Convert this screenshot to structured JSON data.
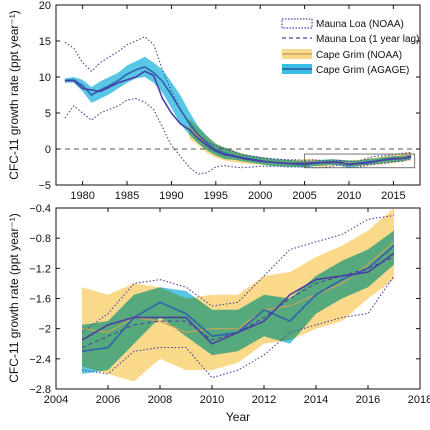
{
  "colors": {
    "mauna_loa": "#4a3fa3",
    "cape_grim_noaa_band": "#fbd98a",
    "cape_grim_agage_band": "#39bde0",
    "cape_grim_agage_line": "#2f63b0",
    "cape_grim_noaa_line": "#c8a35a",
    "overlap": "#4fb3a7",
    "zero_line": "#555555",
    "inset_box": "#666666"
  },
  "chart_data": [
    {
      "type": "line",
      "title": "",
      "xlabel": "",
      "ylabel": "CFC-11 growth rate (ppt year⁻¹)",
      "xlim": [
        1977,
        2018
      ],
      "ylim": [
        -5,
        20
      ],
      "xticks": [
        1980,
        1985,
        1990,
        1995,
        2000,
        2005,
        2010,
        2015
      ],
      "yticks": [
        -5,
        0,
        5,
        10,
        15,
        20
      ],
      "zero_line": true,
      "highlight_box": {
        "x": [
          2005,
          2017.4
        ],
        "y": [
          -2.6,
          -0.7
        ]
      },
      "legend_position": "top-right",
      "legend": [
        {
          "label": "Mauna Loa (NOAA)",
          "style": "dotted-box"
        },
        {
          "label": "Mauna Loa (1 year lag)",
          "style": "dashed-line"
        },
        {
          "label": "Cape Grim (NOAA)",
          "style": "yellow-band"
        },
        {
          "label": "Cape Grim (AGAGE)",
          "style": "blue-band"
        }
      ],
      "series": [
        {
          "name": "Mauna Loa (NOAA)",
          "role": "line",
          "x": [
            1978,
            1979,
            1980,
            1981,
            1982,
            1983,
            1984,
            1985,
            1986,
            1987,
            1988,
            1989,
            1990,
            1991,
            1992,
            1993,
            1994,
            1995,
            1996,
            1997,
            1998,
            1999,
            2000,
            2001,
            2002,
            2003,
            2004,
            2005,
            2006,
            2007,
            2008,
            2009,
            2010,
            2011,
            2012,
            2013,
            2014,
            2015,
            2016,
            2017
          ],
          "y": [
            9.5,
            9.5,
            8.4,
            8.2,
            8.0,
            8.6,
            9.2,
            9.6,
            10.0,
            10.8,
            10.2,
            7.0,
            5.0,
            3.5,
            2.7,
            1.5,
            0.5,
            -0.3,
            -0.8,
            -1.0,
            -1.3,
            -1.5,
            -1.7,
            -1.8,
            -1.9,
            -2.0,
            -2.0,
            -2.0,
            -1.9,
            -1.9,
            -1.9,
            -1.8,
            -2.2,
            -2.0,
            -2.0,
            -1.7,
            -1.5,
            -1.3,
            -1.3,
            -1.0
          ]
        },
        {
          "name": "Mauna Loa (NOAA)",
          "role": "upper-uncertainty",
          "x": [
            1978,
            1979,
            1980,
            1981,
            1982,
            1983,
            1984,
            1985,
            1986,
            1987,
            1988,
            1989,
            1990,
            1991,
            1992,
            1993,
            1994,
            1995,
            1996,
            1997,
            1998,
            1999,
            2000,
            2001,
            2002,
            2003,
            2004,
            2005,
            2006,
            2007,
            2008,
            2009,
            2010,
            2011,
            2012,
            2013,
            2014,
            2015,
            2016,
            2017
          ],
          "y": [
            14.8,
            14.0,
            12.0,
            10.8,
            12.0,
            12.8,
            13.5,
            14.5,
            15.0,
            15.6,
            14.5,
            11.0,
            8.0,
            5.5,
            3.5,
            2.0,
            1.0,
            0.4,
            0.0,
            -0.3,
            -0.8,
            -1.0,
            -1.2,
            -1.3,
            -1.4,
            -1.5,
            -1.5,
            -1.6,
            -1.5,
            -1.6,
            -1.7,
            -1.6,
            -1.7,
            -1.7,
            -1.3,
            -1.0,
            -0.9,
            -0.8,
            -0.6,
            -0.5
          ]
        },
        {
          "name": "Mauna Loa (NOAA)",
          "role": "lower-uncertainty",
          "x": [
            1978,
            1979,
            1980,
            1981,
            1982,
            1983,
            1984,
            1985,
            1986,
            1987,
            1988,
            1989,
            1990,
            1991,
            1992,
            1993,
            1994,
            1995,
            1996,
            1997,
            1998,
            1999,
            2000,
            2001,
            2002,
            2003,
            2004,
            2005,
            2006,
            2007,
            2008,
            2009,
            2010,
            2011,
            2012,
            2013,
            2014,
            2015,
            2016,
            2017
          ],
          "y": [
            4.3,
            6.0,
            5.0,
            4.0,
            5.0,
            5.5,
            6.0,
            6.8,
            7.0,
            6.5,
            5.5,
            3.0,
            0.5,
            -1.0,
            -2.5,
            -3.5,
            -3.3,
            -2.5,
            -2.3,
            -2.5,
            -2.6,
            -2.5,
            -2.4,
            -2.4,
            -2.4,
            -2.5,
            -2.5,
            -2.5,
            -2.6,
            -2.6,
            -2.4,
            -2.2,
            -2.6,
            -2.5,
            -2.3,
            -2.1,
            -2.0,
            -1.8,
            -1.7,
            -1.3
          ]
        },
        {
          "name": "Cape Grim (NOAA)",
          "role": "band",
          "x": [
            1992,
            1993,
            1994,
            1995,
            1996,
            1997,
            1998,
            1999,
            2000,
            2001,
            2002,
            2003,
            2004,
            2005,
            2006,
            2007,
            2008,
            2009,
            2010,
            2011,
            2012,
            2013,
            2014,
            2015,
            2016,
            2017
          ],
          "y": [
            2.8,
            1.8,
            0.6,
            -0.2,
            -0.7,
            -1.0,
            -1.3,
            -1.5,
            -1.6,
            -1.8,
            -1.9,
            -2.0,
            -2.0,
            -2.0,
            -1.8,
            -2.0,
            -1.8,
            -1.8,
            -2.0,
            -2.0,
            -1.8,
            -1.7,
            -1.5,
            -1.3,
            -1.2,
            -0.9
          ],
          "upper": [
            4.2,
            3.0,
            1.8,
            0.8,
            0.2,
            -0.2,
            -0.6,
            -0.9,
            -1.1,
            -1.3,
            -1.4,
            -1.5,
            -1.5,
            -1.4,
            -1.4,
            -1.6,
            -1.4,
            -1.5,
            -1.6,
            -1.5,
            -1.3,
            -1.2,
            -1.0,
            -0.8,
            -0.6,
            -0.4
          ],
          "lower": [
            1.4,
            0.6,
            -0.6,
            -1.2,
            -1.6,
            -1.8,
            -2.0,
            -2.1,
            -2.2,
            -2.3,
            -2.4,
            -2.4,
            -2.5,
            -2.5,
            -2.4,
            -2.5,
            -2.3,
            -2.3,
            -2.4,
            -2.4,
            -2.3,
            -2.2,
            -2.1,
            -1.9,
            -1.8,
            -1.6
          ]
        },
        {
          "name": "Cape Grim (AGAGE)",
          "role": "band",
          "x": [
            1978,
            1979,
            1980,
            1981,
            1982,
            1983,
            1984,
            1985,
            1986,
            1987,
            1988,
            1989,
            1990,
            1991,
            1992,
            1993,
            1994,
            1995,
            1996,
            1997,
            1998,
            1999,
            2000,
            2001,
            2002,
            2003,
            2004,
            2005,
            2006,
            2007,
            2008,
            2009,
            2010,
            2011,
            2012,
            2013,
            2014,
            2015,
            2016,
            2017
          ],
          "y": [
            9.5,
            9.6,
            8.8,
            7.5,
            8.2,
            8.8,
            9.5,
            10.4,
            11.0,
            11.4,
            10.6,
            9.4,
            7.5,
            5.5,
            3.6,
            2.0,
            0.8,
            -0.1,
            -0.6,
            -0.9,
            -1.2,
            -1.4,
            -1.6,
            -1.8,
            -1.9,
            -2.0,
            -2.1,
            -2.2,
            -2.0,
            -1.9,
            -1.8,
            -1.9,
            -2.1,
            -2.0,
            -1.8,
            -1.7,
            -1.5,
            -1.4,
            -1.3,
            -1.1
          ],
          "upper": [
            9.8,
            10.0,
            9.6,
            8.6,
            9.4,
            10.0,
            10.6,
            11.6,
            12.2,
            12.8,
            12.0,
            11.0,
            9.3,
            7.5,
            5.2,
            3.2,
            1.8,
            0.7,
            0.2,
            -0.3,
            -0.7,
            -0.9,
            -1.1,
            -1.3,
            -1.4,
            -1.5,
            -1.6,
            -1.7,
            -1.6,
            -1.5,
            -1.4,
            -1.5,
            -1.6,
            -1.6,
            -1.4,
            -1.3,
            -1.1,
            -1.0,
            -0.9,
            -0.8
          ],
          "lower": [
            9.2,
            9.2,
            8.0,
            6.4,
            7.0,
            7.6,
            8.4,
            9.2,
            9.8,
            10.0,
            9.2,
            7.8,
            5.7,
            3.5,
            2.0,
            0.8,
            -0.2,
            -0.9,
            -1.4,
            -1.5,
            -1.7,
            -1.9,
            -2.1,
            -2.3,
            -2.4,
            -2.5,
            -2.5,
            -2.6,
            -2.4,
            -2.3,
            -2.2,
            -2.3,
            -2.6,
            -2.4,
            -2.2,
            -2.1,
            -1.9,
            -1.8,
            -1.7,
            -1.4
          ]
        }
      ]
    },
    {
      "type": "line",
      "title": "",
      "xlabel": "Year",
      "ylabel": "CFC-11 growth rate (ppt year⁻¹)",
      "xlim": [
        2004,
        2018
      ],
      "ylim": [
        -2.8,
        -0.4
      ],
      "xticks": [
        2004,
        2006,
        2008,
        2010,
        2012,
        2014,
        2016,
        2018
      ],
      "yticks": [
        -2.8,
        -2.4,
        -2.0,
        -1.6,
        -1.2,
        -0.8,
        -0.4
      ],
      "series": [
        {
          "name": "Mauna Loa (NOAA)",
          "role": "line",
          "x": [
            2005,
            2006,
            2007,
            2008,
            2009,
            2010,
            2011,
            2012,
            2013,
            2014,
            2015,
            2016,
            2017
          ],
          "y": [
            -2.15,
            -1.95,
            -1.85,
            -1.85,
            -1.85,
            -2.2,
            -2.05,
            -1.9,
            -1.55,
            -1.35,
            -1.3,
            -1.25,
            -1.0
          ]
        },
        {
          "name": "Mauna Loa (NOAA)",
          "role": "upper-uncertainty",
          "x": [
            2005,
            2006,
            2007,
            2008,
            2009,
            2010,
            2011,
            2012,
            2013,
            2014,
            2015,
            2016,
            2017
          ],
          "y": [
            -2.05,
            -1.8,
            -1.4,
            -1.35,
            -1.45,
            -1.7,
            -1.65,
            -1.3,
            -0.95,
            -0.85,
            -0.75,
            -0.55,
            -0.5
          ]
        },
        {
          "name": "Mauna Loa (NOAA)",
          "role": "lower-uncertainty",
          "x": [
            2005,
            2006,
            2007,
            2008,
            2009,
            2010,
            2011,
            2012,
            2013,
            2014,
            2015,
            2016,
            2017
          ],
          "y": [
            -2.55,
            -2.6,
            -2.3,
            -2.25,
            -2.25,
            -2.65,
            -2.55,
            -2.35,
            -2.05,
            -1.95,
            -1.85,
            -1.8,
            -1.3
          ]
        },
        {
          "name": "Mauna Loa (1 year lag)",
          "role": "dashed",
          "x": [
            2005,
            2006,
            2007,
            2008,
            2009,
            2010,
            2011,
            2012,
            2013,
            2014,
            2015,
            2016,
            2017
          ],
          "y": [
            -2.25,
            -2.1,
            -1.95,
            -1.9,
            -1.9,
            -2.15,
            -2.05,
            -1.85,
            -1.6,
            -1.4,
            -1.3,
            -1.2,
            -1.05
          ]
        },
        {
          "name": "Cape Grim (NOAA)",
          "role": "band",
          "x": [
            2005,
            2006,
            2007,
            2008,
            2009,
            2010,
            2011,
            2012,
            2013,
            2014,
            2015,
            2016,
            2017
          ],
          "y": [
            -2.0,
            -2.05,
            -1.85,
            -1.9,
            -2.05,
            -2.0,
            -2.0,
            -1.75,
            -1.7,
            -1.55,
            -1.4,
            -1.15,
            -0.85
          ],
          "upper": [
            -1.45,
            -1.55,
            -1.4,
            -1.45,
            -1.6,
            -1.55,
            -1.55,
            -1.3,
            -1.25,
            -1.05,
            -0.9,
            -0.7,
            -0.4
          ],
          "lower": [
            -2.5,
            -2.6,
            -2.7,
            -2.4,
            -2.55,
            -2.55,
            -2.45,
            -2.2,
            -2.15,
            -2.0,
            -1.9,
            -1.6,
            -1.35
          ]
        },
        {
          "name": "Cape Grim (AGAGE)",
          "role": "band",
          "x": [
            2005,
            2006,
            2007,
            2008,
            2009,
            2010,
            2011,
            2012,
            2013,
            2014,
            2015,
            2016,
            2017
          ],
          "y": [
            -2.3,
            -2.25,
            -1.85,
            -1.65,
            -1.8,
            -2.1,
            -2.05,
            -1.75,
            -1.9,
            -1.55,
            -1.35,
            -1.2,
            -0.9
          ],
          "upper": [
            -1.95,
            -1.9,
            -1.55,
            -1.45,
            -1.5,
            -1.75,
            -1.75,
            -1.55,
            -1.6,
            -1.3,
            -1.1,
            -0.95,
            -0.7
          ],
          "lower": [
            -2.6,
            -2.55,
            -2.2,
            -1.85,
            -2.1,
            -2.35,
            -2.3,
            -2.1,
            -2.2,
            -1.8,
            -1.6,
            -1.45,
            -1.15
          ]
        }
      ]
    }
  ]
}
